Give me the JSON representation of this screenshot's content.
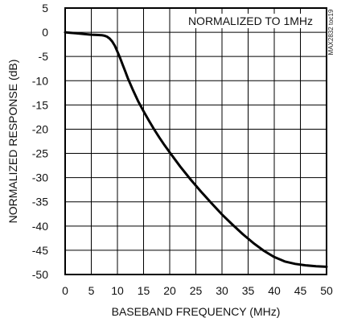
{
  "chart_data": {
    "type": "line",
    "title": "",
    "xlabel": "BASEBAND FREQUENCY (MHz)",
    "ylabel": "NORMALIZED RESPONSE (dB)",
    "xlim": [
      0,
      50
    ],
    "ylim": [
      -50,
      5
    ],
    "x_ticks": [
      0,
      5,
      10,
      15,
      20,
      25,
      30,
      35,
      40,
      45,
      50
    ],
    "y_ticks": [
      5,
      0,
      -5,
      -10,
      -15,
      -20,
      -25,
      -30,
      -35,
      -40,
      -45,
      -50
    ],
    "grid": true,
    "annotation": "NORMALIZED TO 1MHz",
    "figure_code": "MAX2832 toc19",
    "series": [
      {
        "x": [
          0,
          1,
          2,
          3,
          4,
          5,
          6,
          7,
          7.5,
          8,
          8.5,
          9,
          9.5,
          10,
          10.5,
          11,
          11.5,
          12,
          13,
          14,
          15,
          16,
          17,
          18,
          19,
          20,
          22,
          24,
          26,
          28,
          30,
          32,
          34,
          36,
          38,
          40,
          42,
          44,
          46,
          48,
          50
        ],
        "y": [
          0,
          -0.1,
          -0.2,
          -0.3,
          -0.4,
          -0.5,
          -0.55,
          -0.6,
          -0.7,
          -0.9,
          -1.3,
          -1.9,
          -2.8,
          -4.0,
          -5.3,
          -6.7,
          -8.1,
          -9.5,
          -12.0,
          -14.3,
          -16.3,
          -18.2,
          -20.0,
          -21.7,
          -23.3,
          -24.8,
          -27.7,
          -30.4,
          -32.9,
          -35.3,
          -37.6,
          -39.7,
          -41.7,
          -43.5,
          -45.1,
          -46.4,
          -47.3,
          -47.8,
          -48.1,
          -48.3,
          -48.4
        ],
        "color": "#000000"
      }
    ]
  }
}
